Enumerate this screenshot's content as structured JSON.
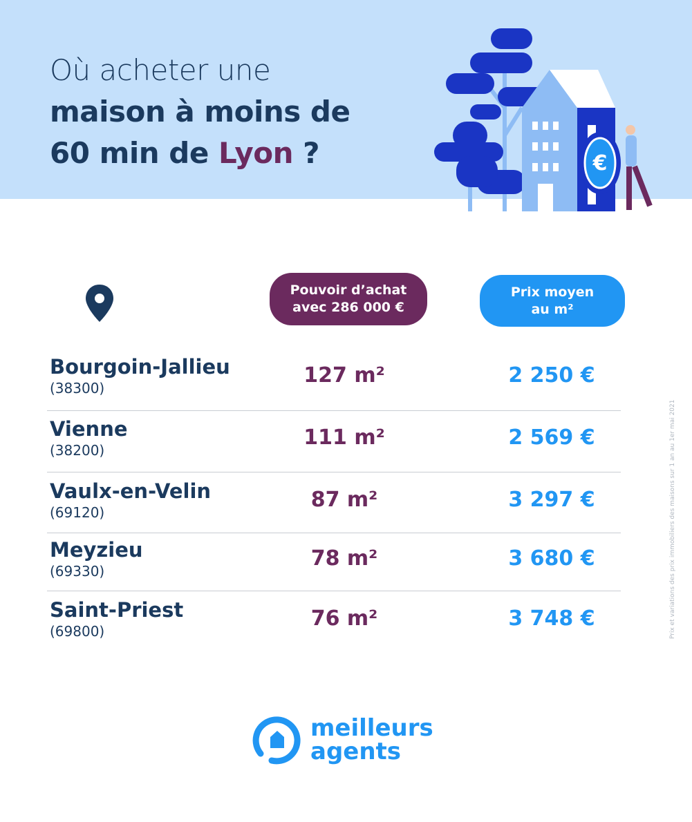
{
  "title": {
    "line1": "Où acheter une",
    "line2": "maison à moins de",
    "line3_pre": "60 min de ",
    "city": "Lyon",
    "line3_post": " ?"
  },
  "headers": {
    "budget": [
      "Pouvoir d’achat",
      "avec 286 000 €"
    ],
    "price": [
      "Prix moyen",
      "au m²"
    ]
  },
  "rows": [
    {
      "city": "Bourgoin-Jallieu",
      "zip": "(38300)",
      "area": "127 m²",
      "price": "2 250 €"
    },
    {
      "city": "Vienne",
      "zip": "(38200)",
      "area": "111 m²",
      "price": "2 569 €"
    },
    {
      "city": "Vaulx-en-Velin",
      "zip": "(69120)",
      "area": "87 m²",
      "price": "3 297 €"
    },
    {
      "city": "Meyzieu",
      "zip": "(69330)",
      "area": "78 m²",
      "price": "3 680 €"
    },
    {
      "city": "Saint-Priest",
      "zip": "(69800)",
      "area": "76 m²",
      "price": "3 748 €"
    }
  ],
  "source": "Prix et variations des prix immobiliers des maisons sur 1 an au 1er mai 2021",
  "logo": {
    "line1": "meilleurs",
    "line2": "agents"
  },
  "colors": {
    "band": "#c4e0fb",
    "navy": "#1b3a5e",
    "purple": "#6b2a5e",
    "blue": "#2196f3"
  }
}
